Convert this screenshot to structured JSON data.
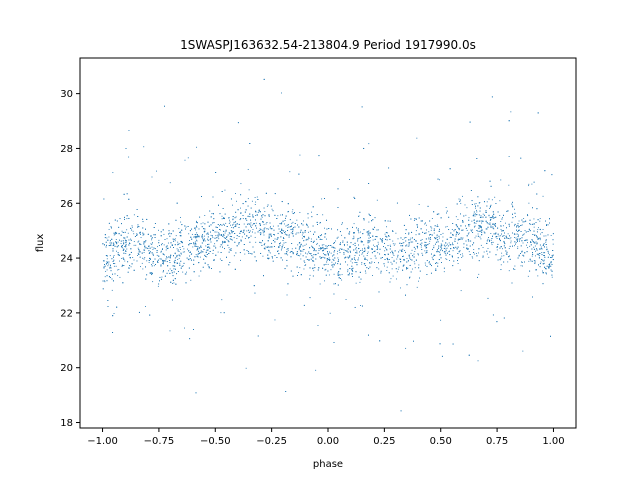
{
  "chart_data": {
    "type": "scatter",
    "title": "1SWASPJ163632.54-213804.9 Period 1917990.0s",
    "xlabel": "phase",
    "ylabel": "flux",
    "xlim": [
      -1.1,
      1.1
    ],
    "ylim": [
      17.8,
      31.3
    ],
    "xticks": [
      -1.0,
      -0.75,
      -0.5,
      -0.25,
      0.0,
      0.25,
      0.5,
      0.75,
      1.0
    ],
    "xtick_labels": [
      "−1.00",
      "−0.75",
      "−0.50",
      "−0.25",
      "0.00",
      "0.25",
      "0.50",
      "0.75",
      "1.00"
    ],
    "yticks": [
      18,
      20,
      22,
      24,
      26,
      28,
      30
    ],
    "ytick_labels": [
      "18",
      "20",
      "22",
      "24",
      "26",
      "28",
      "30"
    ],
    "grid": false,
    "marker_color": "#1f77b4",
    "series": [
      {
        "x": [
          -1.0,
          -0.95,
          -0.9,
          -0.85,
          -0.8,
          -0.75,
          -0.7,
          -0.65,
          -0.6,
          -0.55,
          -0.5,
          -0.45,
          -0.4,
          -0.35,
          -0.3,
          -0.25,
          -0.2,
          -0.15,
          -0.1,
          -0.05,
          0.0,
          0.05,
          0.1,
          0.15,
          0.2,
          0.25,
          0.3,
          0.35,
          0.4,
          0.45,
          0.5,
          0.55,
          0.6,
          0.65,
          0.7,
          0.75,
          0.8,
          0.85,
          0.9,
          0.95,
          1.0
        ],
        "y": [
          24.0,
          24.2,
          24.5,
          24.6,
          24.3,
          24.1,
          24.2,
          24.4,
          24.5,
          24.6,
          24.8,
          24.9,
          25.0,
          25.2,
          25.0,
          24.8,
          24.9,
          24.7,
          24.5,
          24.4,
          24.1,
          24.0,
          24.2,
          24.5,
          24.6,
          24.3,
          24.1,
          24.2,
          24.4,
          24.5,
          24.6,
          24.8,
          24.9,
          25.0,
          25.2,
          25.0,
          24.8,
          24.9,
          24.7,
          24.5,
          24.0
        ]
      }
    ]
  }
}
